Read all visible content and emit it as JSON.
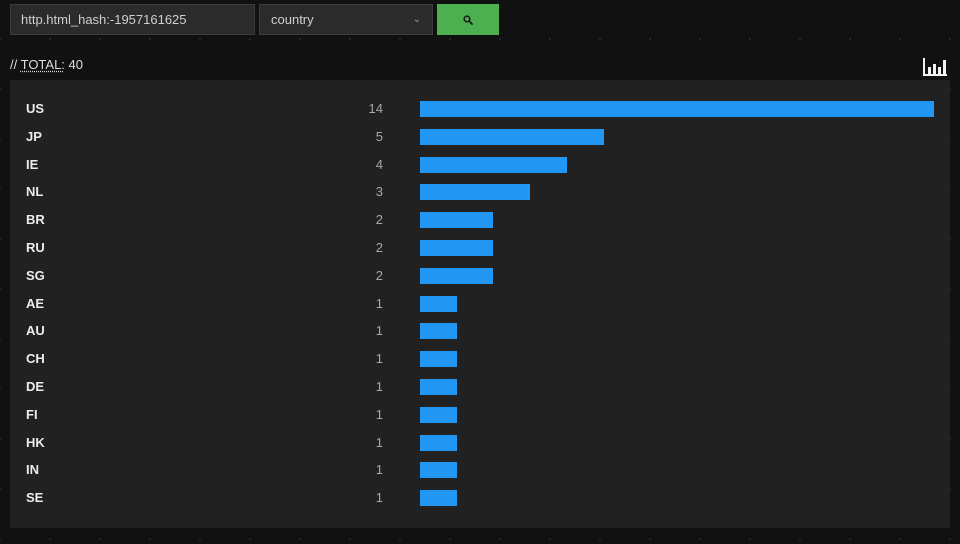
{
  "toolbar": {
    "query_value": "http.html_hash:-1957161625",
    "field_value": "country",
    "search_icon": "search-icon"
  },
  "summary": {
    "prefix": "// ",
    "total_label": "TOTAL:",
    "total_value": "40"
  },
  "colors": {
    "bar": "#2196f3",
    "button": "#4caf50",
    "panel": "#212121"
  },
  "chart_data": {
    "type": "bar",
    "orientation": "horizontal",
    "categories": [
      "US",
      "JP",
      "IE",
      "NL",
      "BR",
      "RU",
      "SG",
      "AE",
      "AU",
      "CH",
      "DE",
      "FI",
      "HK",
      "IN",
      "SE"
    ],
    "values": [
      14,
      5,
      4,
      3,
      2,
      2,
      2,
      1,
      1,
      1,
      1,
      1,
      1,
      1,
      1
    ],
    "xlim": [
      0,
      14
    ]
  }
}
